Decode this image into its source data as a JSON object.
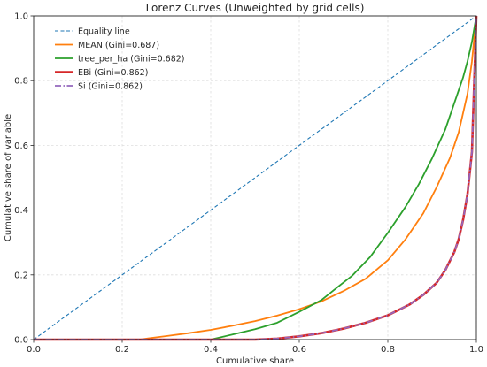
{
  "chart_data": {
    "type": "line",
    "title": "Lorenz Curves (Unweighted by grid cells)",
    "xlabel": "Cumulative share",
    "ylabel": "Cumulative share of variable",
    "xlim": [
      0,
      1
    ],
    "ylim": [
      0,
      1
    ],
    "xticks": [
      "0.0",
      "0.2",
      "0.4",
      "0.6",
      "0.8",
      "1.0"
    ],
    "yticks": [
      "0.0",
      "0.2",
      "0.4",
      "0.6",
      "0.8",
      "1.0"
    ],
    "grid": true,
    "legend_position": "top-left",
    "series": [
      {
        "name": "Equality line",
        "color": "#1f77b4",
        "style": "dashed",
        "x": [
          0,
          1
        ],
        "y": [
          0,
          1
        ]
      },
      {
        "name": "MEAN (Gini=0.687)",
        "color": "#ff7f0e",
        "style": "solid",
        "x": [
          0,
          0.24,
          0.26,
          0.3,
          0.35,
          0.4,
          0.45,
          0.5,
          0.55,
          0.6,
          0.65,
          0.7,
          0.75,
          0.8,
          0.84,
          0.88,
          0.91,
          0.94,
          0.96,
          0.98,
          0.99,
          1.0
        ],
        "y": [
          0,
          0,
          0.004,
          0.011,
          0.02,
          0.03,
          0.043,
          0.057,
          0.074,
          0.094,
          0.118,
          0.15,
          0.188,
          0.245,
          0.31,
          0.39,
          0.47,
          0.56,
          0.64,
          0.76,
          0.86,
          1.0
        ]
      },
      {
        "name": "tree_per_ha (Gini=0.682)",
        "color": "#2ca02c",
        "style": "solid",
        "x": [
          0,
          0.4,
          0.45,
          0.5,
          0.55,
          0.6,
          0.65,
          0.68,
          0.72,
          0.76,
          0.8,
          0.84,
          0.87,
          0.9,
          0.93,
          0.95,
          0.97,
          0.98,
          0.99,
          1.0
        ],
        "y": [
          0,
          0,
          0.016,
          0.032,
          0.052,
          0.086,
          0.122,
          0.155,
          0.198,
          0.255,
          0.33,
          0.41,
          0.48,
          0.56,
          0.65,
          0.73,
          0.81,
          0.86,
          0.92,
          1.0
        ]
      },
      {
        "name": "EBi (Gini=0.862)",
        "color": "#d62728",
        "style": "solid",
        "x": [
          0,
          0.5,
          0.55,
          0.6,
          0.65,
          0.7,
          0.75,
          0.8,
          0.85,
          0.88,
          0.91,
          0.93,
          0.95,
          0.96,
          0.97,
          0.98,
          0.99,
          1.0
        ],
        "y": [
          0,
          0,
          0.003,
          0.01,
          0.02,
          0.034,
          0.052,
          0.075,
          0.109,
          0.138,
          0.175,
          0.215,
          0.27,
          0.31,
          0.37,
          0.45,
          0.58,
          1.0
        ]
      },
      {
        "name": "Si (Gini=0.862)",
        "color": "#9467bd",
        "style": "dashdot",
        "x": [
          0,
          0.5,
          0.55,
          0.6,
          0.65,
          0.7,
          0.75,
          0.8,
          0.85,
          0.88,
          0.91,
          0.93,
          0.95,
          0.96,
          0.97,
          0.98,
          0.99,
          1.0
        ],
        "y": [
          0,
          0,
          0.003,
          0.01,
          0.02,
          0.034,
          0.052,
          0.075,
          0.109,
          0.138,
          0.175,
          0.215,
          0.27,
          0.31,
          0.37,
          0.45,
          0.58,
          1.0
        ]
      }
    ]
  }
}
